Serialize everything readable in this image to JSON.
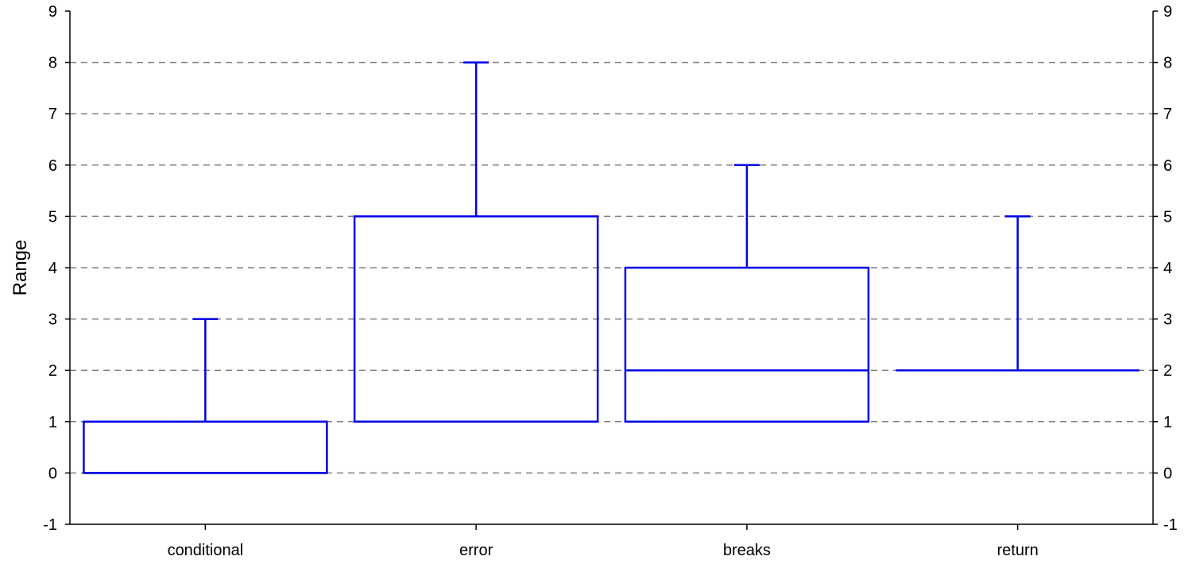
{
  "chart_data": {
    "type": "box",
    "ylabel": "Range",
    "xlabel": "",
    "title": "",
    "ylim": [
      -1,
      9
    ],
    "yticks": [
      -1,
      0,
      1,
      2,
      3,
      4,
      5,
      6,
      7,
      8,
      9
    ],
    "ytick_labels": [
      "-1",
      "0",
      "1",
      "2",
      "3",
      "4",
      "5",
      "6",
      "7",
      "8",
      "9"
    ],
    "grid": true,
    "grid_style": "dashed",
    "right_axis_mirrored": true,
    "categories": [
      "conditional",
      "error",
      "breaks",
      "return"
    ],
    "boxes": [
      {
        "name": "conditional",
        "min": 0,
        "q1": 0,
        "median": 0,
        "q3": 1,
        "max": 3
      },
      {
        "name": "error",
        "min": 1,
        "q1": 1,
        "median": 1,
        "q3": 5,
        "max": 8
      },
      {
        "name": "breaks",
        "min": 1,
        "q1": 1,
        "median": 2,
        "q3": 4,
        "max": 6
      },
      {
        "name": "return",
        "min": 2,
        "q1": 2,
        "median": 2,
        "q3": 2,
        "max": 5
      }
    ],
    "colors": {
      "box": "#0000e6",
      "grid": "#808080",
      "axis": "#000000"
    }
  }
}
